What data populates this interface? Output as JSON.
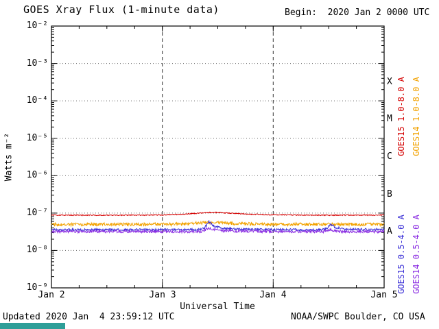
{
  "header": {
    "title": "GOES Xray Flux (1-minute data)",
    "begin_label": "Begin:  2020 Jan 2 0000 UTC"
  },
  "footer": {
    "updated": "Updated 2020 Jan  4 23:59:12 UTC",
    "source": "NOAA/SWPC Boulder, CO USA",
    "banner_color": "#2e9e98"
  },
  "chart_data": {
    "type": "line",
    "title": "GOES Xray Flux (1-minute data)",
    "xlabel": "Universal Time",
    "ylabel": "Watts m⁻²",
    "x_range_days": [
      0,
      3
    ],
    "x_tick_days": [
      0,
      1,
      2,
      3
    ],
    "x_tick_labels": [
      "Jan 2",
      "Jan 3",
      "Jan 4",
      "Jan 5"
    ],
    "y_scale": "log",
    "y_range": [
      1e-09,
      0.01
    ],
    "y_tick_values": [
      0.01,
      0.001,
      0.0001,
      1e-05,
      1e-06,
      1e-07,
      1e-08,
      1e-09
    ],
    "y_tick_labels": [
      "10⁻²",
      "10⁻³",
      "10⁻⁴",
      "10⁻⁵",
      "10⁻⁶",
      "10⁻⁷",
      "10⁻⁸",
      "10⁻⁹"
    ],
    "flare_classes": [
      {
        "label": "X",
        "flux": 0.000316
      },
      {
        "label": "M",
        "flux": 3.16e-05
      },
      {
        "label": "C",
        "flux": 3.16e-06
      },
      {
        "label": "B",
        "flux": 3.16e-07
      },
      {
        "label": "A",
        "flux": 3.16e-08
      }
    ],
    "grid": {
      "h_dotted_flux": [
        0.001,
        0.0001,
        1e-05,
        1e-06,
        1e-07,
        1e-08
      ],
      "v_dashed_days": [
        1,
        2
      ]
    },
    "legend_position": "right-rotated",
    "series": [
      {
        "name": "GOES15 1.0-8.0 A",
        "color": "#d40000",
        "noise": 0.03,
        "points": [
          [
            0,
            8.8e-08
          ],
          [
            0.2,
            8.8e-08
          ],
          [
            0.4,
            8.8e-08
          ],
          [
            0.6,
            8.8e-08
          ],
          [
            0.8,
            8.8e-08
          ],
          [
            1.0,
            8.9e-08
          ],
          [
            1.1,
            9.1e-08
          ],
          [
            1.2,
            9.4e-08
          ],
          [
            1.3,
            9.8e-08
          ],
          [
            1.4,
            1.03e-07
          ],
          [
            1.5,
            1.04e-07
          ],
          [
            1.6,
            1e-07
          ],
          [
            1.7,
            9.6e-08
          ],
          [
            1.8,
            9.3e-08
          ],
          [
            1.9,
            9.1e-08
          ],
          [
            2.0,
            9e-08
          ],
          [
            2.2,
            8.9e-08
          ],
          [
            2.4,
            8.8e-08
          ],
          [
            2.6,
            8.8e-08
          ],
          [
            2.8,
            8.8e-08
          ],
          [
            3.0,
            8.8e-08
          ]
        ]
      },
      {
        "name": "GOES14 1.0-8.0 A",
        "color": "#f2a200",
        "noise": 0.1,
        "points": [
          [
            0,
            5e-08
          ],
          [
            0.5,
            5e-08
          ],
          [
            1.0,
            5e-08
          ],
          [
            1.2,
            5.1e-08
          ],
          [
            1.4,
            5.6e-08
          ],
          [
            1.5,
            5.6e-08
          ],
          [
            1.7,
            5.2e-08
          ],
          [
            2.0,
            5e-08
          ],
          [
            2.5,
            5e-08
          ],
          [
            3.0,
            5e-08
          ]
        ]
      },
      {
        "name": "GOES15 0.5-4.0 A",
        "color": "#3a2fd6",
        "noise": 0.07,
        "points": [
          [
            0,
            3.6e-08
          ],
          [
            0.5,
            3.6e-08
          ],
          [
            1.0,
            3.6e-08
          ],
          [
            1.3,
            3.6e-08
          ],
          [
            1.38,
            3.9e-08
          ],
          [
            1.42,
            6e-08
          ],
          [
            1.46,
            4.6e-08
          ],
          [
            1.55,
            3.9e-08
          ],
          [
            1.7,
            3.7e-08
          ],
          [
            2.0,
            3.6e-08
          ],
          [
            2.4,
            3.6e-08
          ],
          [
            2.48,
            3.8e-08
          ],
          [
            2.52,
            5e-08
          ],
          [
            2.56,
            4.2e-08
          ],
          [
            2.65,
            3.7e-08
          ],
          [
            3.0,
            3.6e-08
          ]
        ]
      },
      {
        "name": "GOES14 0.5-4.0 A",
        "color": "#8a2be2",
        "noise": 0.08,
        "points": [
          [
            0,
            3.2e-08
          ],
          [
            0.5,
            3.2e-08
          ],
          [
            1.0,
            3.2e-08
          ],
          [
            1.35,
            3.2e-08
          ],
          [
            1.42,
            4e-08
          ],
          [
            1.5,
            3.4e-08
          ],
          [
            2.0,
            3.2e-08
          ],
          [
            2.45,
            3.2e-08
          ],
          [
            2.52,
            3.6e-08
          ],
          [
            2.6,
            3.2e-08
          ],
          [
            3.0,
            3.2e-08
          ]
        ]
      }
    ]
  }
}
